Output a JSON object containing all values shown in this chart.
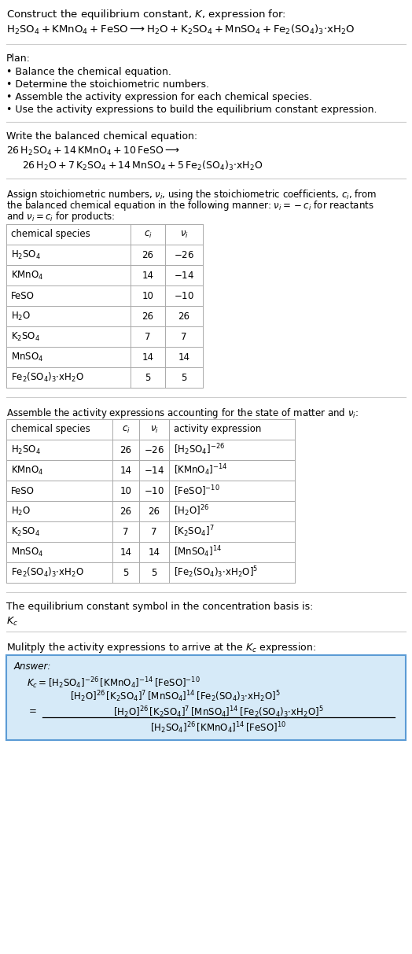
{
  "bg_color": "#ffffff",
  "text_color": "#000000",
  "title_line1": "Construct the equilibrium constant, $K$, expression for:",
  "reaction_line": "$\\mathrm{H_2SO_4 + KMnO_4 + FeSO} \\longrightarrow \\mathrm{H_2O + K_2SO_4 + MnSO_4 + Fe_2(SO_4)_3{\\cdot}xH_2O}$",
  "plan_header": "Plan:",
  "plan_items": [
    "• Balance the chemical equation.",
    "• Determine the stoichiometric numbers.",
    "• Assemble the activity expression for each chemical species.",
    "• Use the activity expressions to build the equilibrium constant expression."
  ],
  "balanced_header": "Write the balanced chemical equation:",
  "balanced_line1": "$26\\,\\mathrm{H_2SO_4 + 14\\,KMnO_4 + 10\\,FeSO} \\longrightarrow$",
  "balanced_line2": "$26\\,\\mathrm{H_2O + 7\\,K_2SO_4 + 14\\,MnSO_4 + 5\\,Fe_2(SO_4)_3{\\cdot}xH_2O}$",
  "stoich_lines": [
    "Assign stoichiometric numbers, $\\nu_i$, using the stoichiometric coefficients, $c_i$, from",
    "the balanced chemical equation in the following manner: $\\nu_i = -c_i$ for reactants",
    "and $\\nu_i = c_i$ for products:"
  ],
  "table1_headers": [
    "chemical species",
    "$c_i$",
    "$\\nu_i$"
  ],
  "table1_rows": [
    [
      "$\\mathrm{H_2SO_4}$",
      "26",
      "$-26$"
    ],
    [
      "$\\mathrm{KMnO_4}$",
      "14",
      "$-14$"
    ],
    [
      "FeSO",
      "10",
      "$-10$"
    ],
    [
      "$\\mathrm{H_2O}$",
      "26",
      "26"
    ],
    [
      "$\\mathrm{K_2SO_4}$",
      "7",
      "7"
    ],
    [
      "$\\mathrm{MnSO_4}$",
      "14",
      "14"
    ],
    [
      "$\\mathrm{Fe_2(SO_4)_3{\\cdot}xH_2O}$",
      "5",
      "5"
    ]
  ],
  "activity_header": "Assemble the activity expressions accounting for the state of matter and $\\nu_i$:",
  "table2_headers": [
    "chemical species",
    "$c_i$",
    "$\\nu_i$",
    "activity expression"
  ],
  "table2_rows": [
    [
      "$\\mathrm{H_2SO_4}$",
      "26",
      "$-26$",
      "$[\\mathrm{H_2SO_4}]^{-26}$"
    ],
    [
      "$\\mathrm{KMnO_4}$",
      "14",
      "$-14$",
      "$[\\mathrm{KMnO_4}]^{-14}$"
    ],
    [
      "FeSO",
      "10",
      "$-10$",
      "$[\\mathrm{FeSO}]^{-10}$"
    ],
    [
      "$\\mathrm{H_2O}$",
      "26",
      "26",
      "$[\\mathrm{H_2O}]^{26}$"
    ],
    [
      "$\\mathrm{K_2SO_4}$",
      "7",
      "7",
      "$[\\mathrm{K_2SO_4}]^{7}$"
    ],
    [
      "$\\mathrm{MnSO_4}$",
      "14",
      "14",
      "$[\\mathrm{MnSO_4}]^{14}$"
    ],
    [
      "$\\mathrm{Fe_2(SO_4)_3{\\cdot}xH_2O}$",
      "5",
      "5",
      "$[\\mathrm{Fe_2(SO_4)_3{\\cdot}xH_2O}]^{5}$"
    ]
  ],
  "kc_header": "The equilibrium constant symbol in the concentration basis is:",
  "kc_symbol": "$K_c$",
  "multiply_header": "Mulitply the activity expressions to arrive at the $K_c$ expression:",
  "answer_label": "Answer:",
  "answer_box_color": "#d6eaf8",
  "answer_box_border": "#5b9bd5",
  "sep_color": "#cccccc",
  "table_line_color": "#aaaaaa"
}
